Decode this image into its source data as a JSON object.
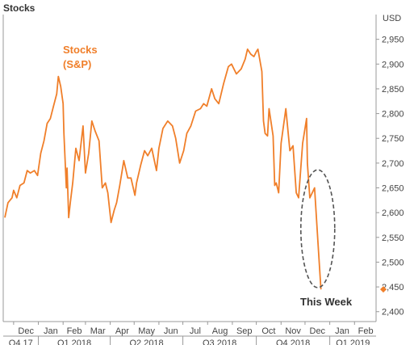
{
  "chart_data": {
    "type": "line",
    "title": "Stocks",
    "unit_label": "USD",
    "ylim": [
      2380,
      3000
    ],
    "yticks": [
      2400,
      2450,
      2500,
      2550,
      2600,
      2650,
      2700,
      2750,
      2800,
      2850,
      2900,
      2950
    ],
    "ytick_labels": [
      "2,400",
      "2,450",
      "2,500",
      "2,550",
      "2,600",
      "2,650",
      "2,700",
      "2,750",
      "2,800",
      "2,850",
      "2,900",
      "2,950"
    ],
    "xlim": [
      "2017-11-18",
      "2019-02-28"
    ],
    "month_labels": [
      {
        "date": "2017-12-01",
        "label": "Dec"
      },
      {
        "date": "2018-01-01",
        "label": "Jan"
      },
      {
        "date": "2018-02-01",
        "label": "Feb"
      },
      {
        "date": "2018-03-01",
        "label": "Mar"
      },
      {
        "date": "2018-04-01",
        "label": "Apr"
      },
      {
        "date": "2018-05-01",
        "label": "May"
      },
      {
        "date": "2018-06-01",
        "label": "Jun"
      },
      {
        "date": "2018-07-01",
        "label": "Jul"
      },
      {
        "date": "2018-08-01",
        "label": "Aug"
      },
      {
        "date": "2018-09-01",
        "label": "Sep"
      },
      {
        "date": "2018-10-01",
        "label": "Oct"
      },
      {
        "date": "2018-11-01",
        "label": "Nov"
      },
      {
        "date": "2018-12-01",
        "label": "Dec"
      },
      {
        "date": "2019-01-01",
        "label": "Jan"
      },
      {
        "date": "2019-02-01",
        "label": "Feb"
      }
    ],
    "quarter_labels": [
      {
        "start": "2017-11-18",
        "end": "2017-12-31",
        "label": "Q4 17"
      },
      {
        "start": "2018-01-01",
        "end": "2018-03-31",
        "label": "Q1 2018"
      },
      {
        "start": "2018-04-01",
        "end": "2018-06-30",
        "label": "Q2 2018"
      },
      {
        "start": "2018-07-01",
        "end": "2018-09-30",
        "label": "Q3 2018"
      },
      {
        "start": "2018-10-01",
        "end": "2018-12-31",
        "label": "Q4 2018"
      },
      {
        "start": "2019-01-01",
        "end": "2019-02-28",
        "label": "Q1 2019"
      }
    ],
    "series": [
      {
        "name": "Stocks (S&P)",
        "color": "#f07f2a",
        "points": [
          [
            "2017-11-20",
            2590
          ],
          [
            "2017-11-24",
            2620
          ],
          [
            "2017-11-29",
            2630
          ],
          [
            "2017-12-01",
            2645
          ],
          [
            "2017-12-05",
            2630
          ],
          [
            "2017-12-09",
            2655
          ],
          [
            "2017-12-14",
            2660
          ],
          [
            "2017-12-18",
            2685
          ],
          [
            "2017-12-22",
            2680
          ],
          [
            "2017-12-27",
            2685
          ],
          [
            "2017-12-31",
            2675
          ],
          [
            "2018-01-04",
            2720
          ],
          [
            "2018-01-08",
            2745
          ],
          [
            "2018-01-12",
            2780
          ],
          [
            "2018-01-16",
            2790
          ],
          [
            "2018-01-20",
            2815
          ],
          [
            "2018-01-24",
            2840
          ],
          [
            "2018-01-26",
            2875
          ],
          [
            "2018-01-29",
            2855
          ],
          [
            "2018-02-01",
            2820
          ],
          [
            "2018-02-02",
            2760
          ],
          [
            "2018-02-05",
            2650
          ],
          [
            "2018-02-06",
            2690
          ],
          [
            "2018-02-08",
            2590
          ],
          [
            "2018-02-10",
            2620
          ],
          [
            "2018-02-13",
            2660
          ],
          [
            "2018-02-17",
            2730
          ],
          [
            "2018-02-21",
            2705
          ],
          [
            "2018-02-26",
            2775
          ],
          [
            "2018-03-01",
            2680
          ],
          [
            "2018-03-05",
            2720
          ],
          [
            "2018-03-09",
            2785
          ],
          [
            "2018-03-13",
            2765
          ],
          [
            "2018-03-18",
            2745
          ],
          [
            "2018-03-22",
            2650
          ],
          [
            "2018-03-26",
            2660
          ],
          [
            "2018-03-29",
            2640
          ],
          [
            "2018-04-02",
            2580
          ],
          [
            "2018-04-06",
            2605
          ],
          [
            "2018-04-09",
            2620
          ],
          [
            "2018-04-13",
            2655
          ],
          [
            "2018-04-18",
            2705
          ],
          [
            "2018-04-23",
            2670
          ],
          [
            "2018-04-27",
            2670
          ],
          [
            "2018-05-02",
            2635
          ],
          [
            "2018-05-04",
            2660
          ],
          [
            "2018-05-09",
            2695
          ],
          [
            "2018-05-14",
            2725
          ],
          [
            "2018-05-18",
            2715
          ],
          [
            "2018-05-23",
            2730
          ],
          [
            "2018-05-29",
            2685
          ],
          [
            "2018-06-01",
            2730
          ],
          [
            "2018-06-06",
            2770
          ],
          [
            "2018-06-12",
            2785
          ],
          [
            "2018-06-18",
            2775
          ],
          [
            "2018-06-22",
            2750
          ],
          [
            "2018-06-27",
            2700
          ],
          [
            "2018-07-02",
            2725
          ],
          [
            "2018-07-06",
            2760
          ],
          [
            "2018-07-11",
            2775
          ],
          [
            "2018-07-17",
            2805
          ],
          [
            "2018-07-23",
            2810
          ],
          [
            "2018-07-27",
            2820
          ],
          [
            "2018-07-31",
            2815
          ],
          [
            "2018-08-06",
            2850
          ],
          [
            "2018-08-10",
            2830
          ],
          [
            "2018-08-15",
            2820
          ],
          [
            "2018-08-21",
            2860
          ],
          [
            "2018-08-27",
            2895
          ],
          [
            "2018-08-31",
            2900
          ],
          [
            "2018-09-06",
            2880
          ],
          [
            "2018-09-12",
            2890
          ],
          [
            "2018-09-17",
            2910
          ],
          [
            "2018-09-20",
            2930
          ],
          [
            "2018-09-24",
            2920
          ],
          [
            "2018-09-28",
            2915
          ],
          [
            "2018-10-01",
            2925
          ],
          [
            "2018-10-03",
            2930
          ],
          [
            "2018-10-08",
            2885
          ],
          [
            "2018-10-10",
            2785
          ],
          [
            "2018-10-12",
            2760
          ],
          [
            "2018-10-15",
            2755
          ],
          [
            "2018-10-17",
            2810
          ],
          [
            "2018-10-22",
            2755
          ],
          [
            "2018-10-24",
            2655
          ],
          [
            "2018-10-26",
            2660
          ],
          [
            "2018-10-29",
            2640
          ],
          [
            "2018-11-01",
            2740
          ],
          [
            "2018-11-07",
            2810
          ],
          [
            "2018-11-12",
            2725
          ],
          [
            "2018-11-16",
            2735
          ],
          [
            "2018-11-20",
            2640
          ],
          [
            "2018-11-23",
            2630
          ],
          [
            "2018-11-28",
            2740
          ],
          [
            "2018-12-03",
            2790
          ],
          [
            "2018-12-04",
            2700
          ],
          [
            "2018-12-07",
            2630
          ],
          [
            "2018-12-10",
            2640
          ],
          [
            "2018-12-13",
            2650
          ],
          [
            "2018-12-17",
            2545
          ],
          [
            "2018-12-20",
            2470
          ],
          [
            "2018-12-21",
            2445
          ]
        ]
      }
    ],
    "series_label": [
      "Stocks",
      "(S&P)"
    ],
    "last_value": 2445,
    "annotation": "This Week"
  }
}
